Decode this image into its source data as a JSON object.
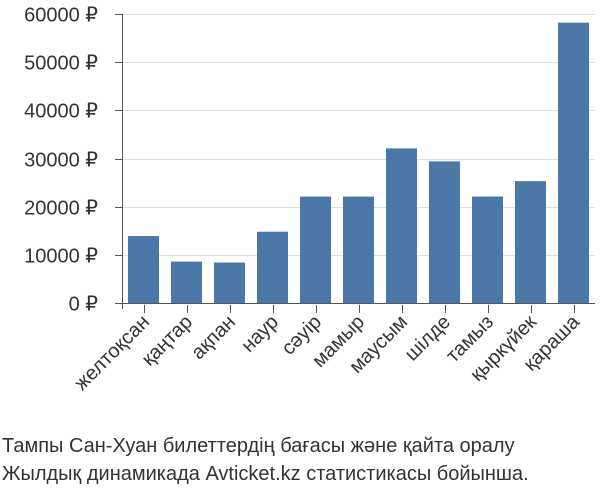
{
  "chart_data": {
    "type": "bar",
    "categories": [
      "желтоқсан",
      "қаңтар",
      "ақпан",
      "наур",
      "сәуір",
      "мамыр",
      "маусым",
      "шілде",
      "тамыз",
      "қыркүйек",
      "қараша"
    ],
    "values": [
      13900,
      8600,
      8400,
      14800,
      22100,
      22100,
      32100,
      29400,
      22100,
      25300,
      58200
    ],
    "ylim": [
      0,
      60000
    ],
    "yticks": [
      0,
      10000,
      20000,
      30000,
      40000,
      50000,
      60000
    ],
    "ytick_labels": [
      "0 ₽",
      "10000 ₽",
      "20000 ₽",
      "30000 ₽",
      "40000 ₽",
      "50000 ₽",
      "60000 ₽"
    ],
    "bar_color": "#4a76a8",
    "grid": "horizontal",
    "legend": "none"
  },
  "caption": {
    "line1": "Тампы Сан-Хуан билеттердің бағасы және қайта оралу",
    "line2": "Жылдық динамикада Avticket.kz статистикасы бойынша."
  }
}
